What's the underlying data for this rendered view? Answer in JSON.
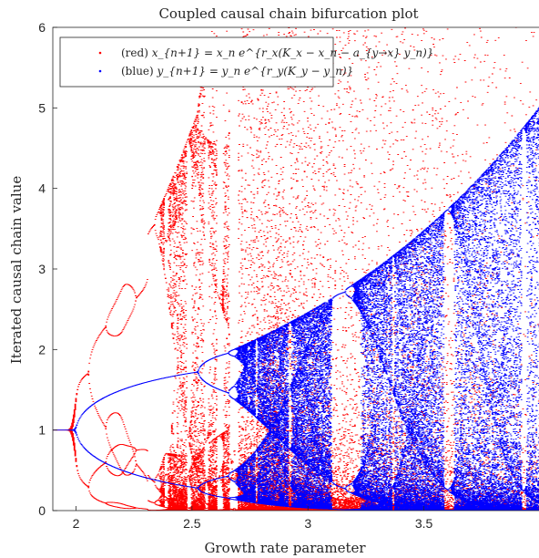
{
  "chart_data": {
    "type": "scatter",
    "title": "Coupled causal chain bifurcation plot",
    "xlabel": "Growth rate parameter",
    "ylabel": "Iterated causal chain value",
    "xlim": [
      1.9,
      4.0
    ],
    "ylim": [
      0,
      6
    ],
    "xticks": [
      {
        "value": 2,
        "label": "2"
      },
      {
        "value": 2.5,
        "label": "2.5"
      },
      {
        "value": 3,
        "label": "3"
      },
      {
        "value": 3.5,
        "label": "3.5"
      }
    ],
    "yticks": [
      {
        "value": 0,
        "label": "0"
      },
      {
        "value": 1,
        "label": "1"
      },
      {
        "value": 2,
        "label": "2"
      },
      {
        "value": 3,
        "label": "3"
      },
      {
        "value": 4,
        "label": "4"
      },
      {
        "value": 5,
        "label": "5"
      },
      {
        "value": 6,
        "label": "6"
      }
    ],
    "legend_position": "top-left",
    "series": [
      {
        "legend_prefix": "(red) ",
        "legend_formula": "x_{n+1} = x_n e^{r_x(K_x − x_n − a_{y→x} y_n)}",
        "color": "#ff0000",
        "marker": "point"
      },
      {
        "legend_prefix": "(blue) ",
        "legend_formula": "y_{n+1} = y_n e^{r_y(K_y − y_n)}",
        "color": "#0000ff",
        "marker": "point"
      }
    ]
  }
}
